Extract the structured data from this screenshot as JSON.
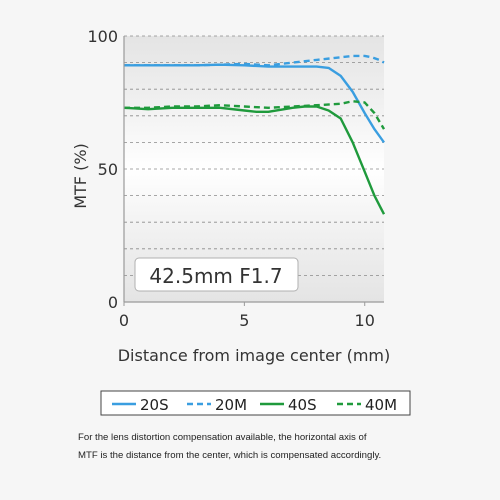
{
  "chart_data": {
    "type": "line",
    "title": "",
    "xlabel": "Distance from image center (mm)",
    "ylabel": "MTF (%)",
    "xlim": [
      0,
      10.8
    ],
    "ylim": [
      0,
      100
    ],
    "x_ticks": [
      "0",
      "5",
      "10"
    ],
    "y_ticks": [
      "0",
      "50",
      "100"
    ],
    "grid": "horizontal dashed every 10",
    "annotation": "42.5mm F1.7",
    "legend_position": "bottom",
    "colors": {
      "20": "#3a9ee0",
      "40": "#1f9a3c"
    },
    "series": [
      {
        "name": "20S",
        "style": "solid",
        "color": "#3a9ee0",
        "x": [
          0,
          1,
          2,
          3,
          4,
          5,
          6,
          7,
          8,
          8.5,
          9,
          9.5,
          10,
          10.4,
          10.8
        ],
        "y": [
          89,
          89,
          89,
          89,
          89.2,
          89,
          88.5,
          88.5,
          88.5,
          88,
          85,
          79,
          71,
          65,
          60
        ]
      },
      {
        "name": "20M",
        "style": "dashed",
        "color": "#3a9ee0",
        "x": [
          0,
          1,
          2,
          3,
          4,
          5,
          6,
          7,
          8,
          9,
          9.5,
          10,
          10.3,
          10.6,
          10.8
        ],
        "y": [
          89,
          89,
          89,
          89,
          89.2,
          89.5,
          89,
          90,
          91,
          92,
          92.5,
          92.5,
          92,
          91,
          90
        ]
      },
      {
        "name": "40S",
        "style": "solid",
        "color": "#1f9a3c",
        "x": [
          0,
          1,
          2,
          3,
          4,
          5,
          5.5,
          6,
          7,
          7.5,
          8,
          8.5,
          9,
          9.5,
          10,
          10.4,
          10.8
        ],
        "y": [
          73,
          72.5,
          73,
          73,
          73,
          72,
          71.5,
          71.5,
          73,
          73.5,
          73.5,
          72,
          69,
          60,
          49,
          40,
          33
        ]
      },
      {
        "name": "40M",
        "style": "dashed",
        "color": "#1f9a3c",
        "x": [
          0,
          1,
          2,
          3,
          4,
          5,
          6,
          7,
          8,
          9,
          9.5,
          10,
          10.4,
          10.8
        ],
        "y": [
          73,
          73,
          73.5,
          73.5,
          74,
          73.5,
          73,
          73.5,
          74,
          74.5,
          75.5,
          75,
          71,
          65
        ]
      }
    ]
  },
  "footnote": {
    "line1": "For the lens distortion compensation available, the horizontal axis of",
    "line2": "MTF is the distance from the center, which is compensated accordingly."
  }
}
